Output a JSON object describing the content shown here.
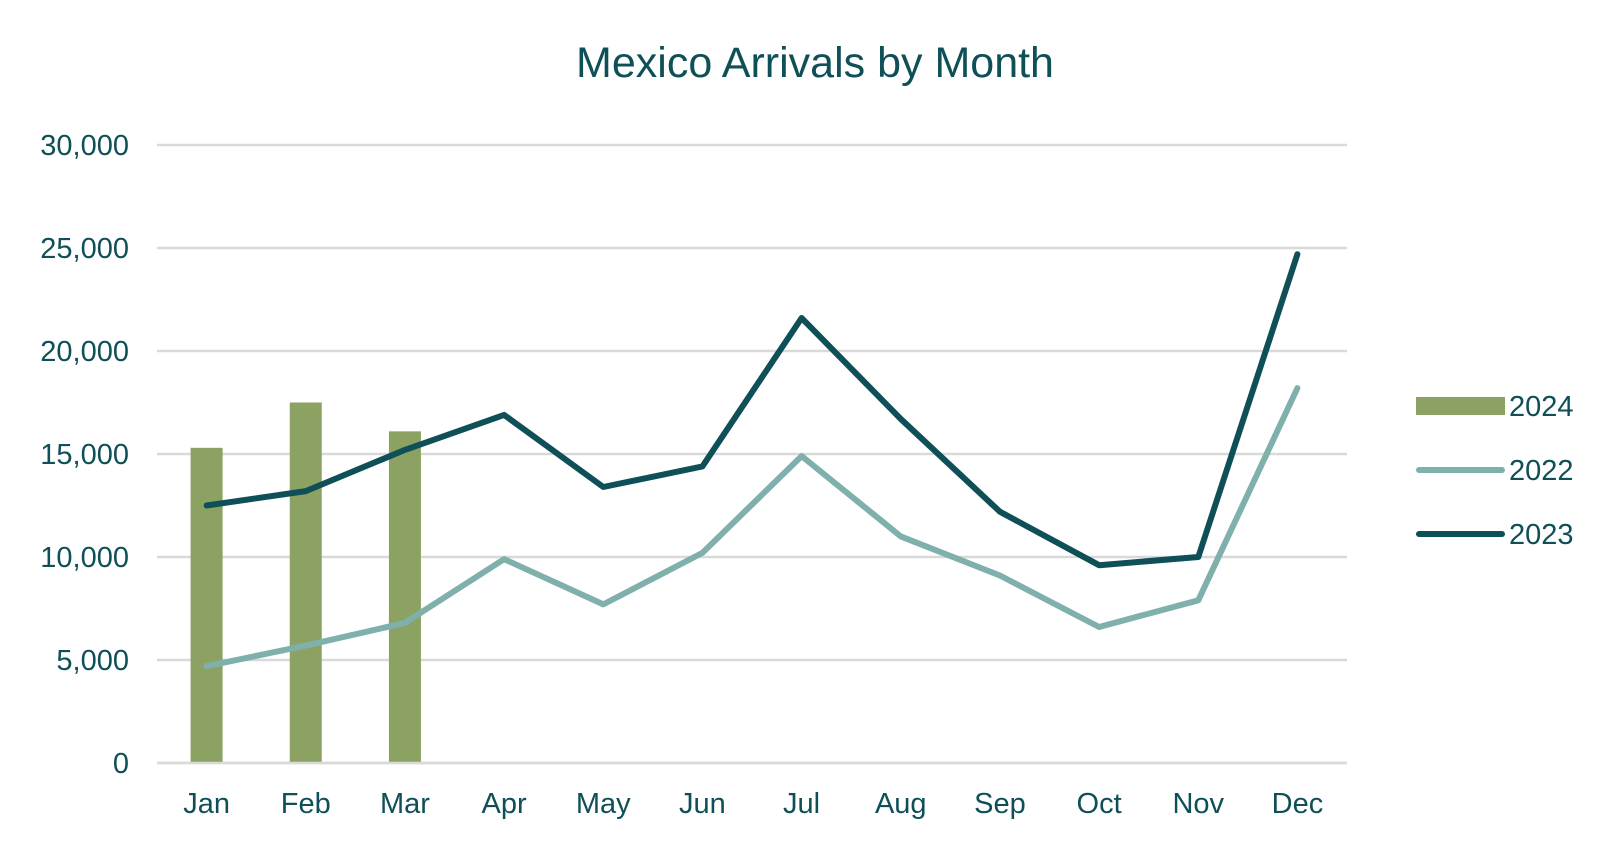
{
  "chart_data": {
    "type": "bar",
    "title": "Mexico Arrivals by Month",
    "xlabel": "",
    "ylabel": "",
    "categories": [
      "Jan",
      "Feb",
      "Mar",
      "Apr",
      "May",
      "Jun",
      "Jul",
      "Aug",
      "Sep",
      "Oct",
      "Nov",
      "Dec"
    ],
    "ylim": [
      0,
      30000
    ],
    "y_ticks": [
      0,
      5000,
      10000,
      15000,
      20000,
      25000,
      30000
    ],
    "y_tick_labels": [
      "0",
      "5,000",
      "10,000",
      "15,000",
      "20,000",
      "25,000",
      "30,000"
    ],
    "grid": true,
    "legend_position": "right",
    "series": [
      {
        "name": "2024",
        "type": "bar",
        "color": "#8ca262",
        "values": [
          15300,
          17500,
          16100,
          null,
          null,
          null,
          null,
          null,
          null,
          null,
          null,
          null
        ]
      },
      {
        "name": "2022",
        "type": "line",
        "color": "#7fb0ac",
        "values": [
          4700,
          5700,
          6800,
          9900,
          7700,
          10200,
          14900,
          11000,
          9100,
          6600,
          7900,
          18200
        ]
      },
      {
        "name": "2023",
        "type": "line",
        "color": "#0f4f57",
        "values": [
          12500,
          13200,
          15200,
          16900,
          13400,
          14400,
          21600,
          16700,
          12200,
          9600,
          10000,
          24700
        ]
      }
    ]
  }
}
